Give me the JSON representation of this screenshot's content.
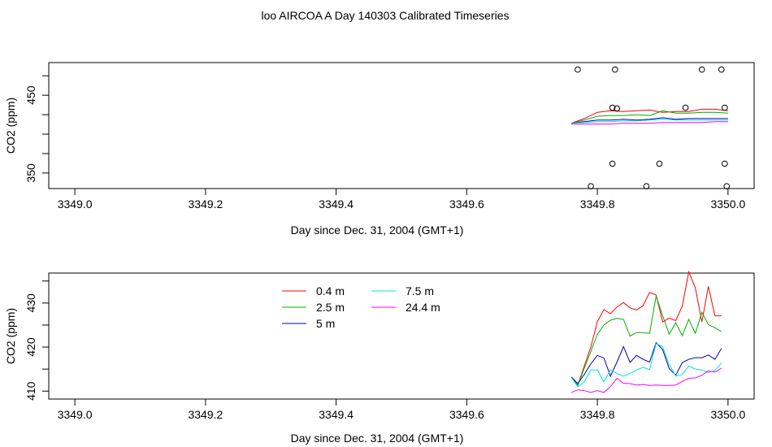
{
  "title": "loo AIRCOA A  Day 140303  Calibrated Timeseries",
  "chart_data": [
    {
      "type": "line",
      "xlabel": "Day since Dec. 31, 2004 (GMT+1)",
      "ylabel": "CO2 (ppm)",
      "xlim": [
        3348.96,
        3350.04
      ],
      "ylim": [
        330,
        492
      ],
      "x_ticks": [
        3349.0,
        3349.2,
        3349.4,
        3349.6,
        3349.8,
        3350.0
      ],
      "x_tick_labels": [
        "3349.0",
        "3349.2",
        "3349.4",
        "3349.6",
        "3349.8",
        "3350.0"
      ],
      "y_ticks": [
        350,
        400,
        450
      ],
      "y_tick_labels": [
        "350",
        "",
        "450"
      ],
      "y_minor_ticks": [
        375,
        425,
        475
      ],
      "series": [
        {
          "name": "0.4 m",
          "color": "#ff0000",
          "x": [
            3349.76,
            3349.78,
            3349.8,
            3349.82,
            3349.84,
            3349.86,
            3349.88,
            3349.9,
            3349.92,
            3349.94,
            3349.96,
            3349.98,
            3350.0
          ],
          "y": [
            414,
            420,
            428,
            430,
            429,
            430,
            431,
            428,
            429,
            429,
            432,
            432,
            430
          ]
        },
        {
          "name": "2.5 m",
          "color": "#00b000",
          "x": [
            3349.76,
            3349.78,
            3349.8,
            3349.82,
            3349.84,
            3349.86,
            3349.88,
            3349.9,
            3349.92,
            3349.94,
            3349.96,
            3349.98,
            3350.0
          ],
          "y": [
            414,
            418,
            423,
            424,
            424,
            425,
            424,
            430,
            427,
            427,
            428,
            428,
            427
          ]
        },
        {
          "name": "5 m",
          "color": "#0000b0",
          "x": [
            3349.76,
            3349.78,
            3349.8,
            3349.82,
            3349.84,
            3349.86,
            3349.88,
            3349.9,
            3349.92,
            3349.94,
            3349.96,
            3349.98,
            3350.0
          ],
          "y": [
            414,
            416,
            418,
            418,
            419,
            418,
            419,
            421,
            419,
            420,
            420,
            420,
            420
          ]
        },
        {
          "name": "7.5 m",
          "color": "#00e0e0",
          "x": [
            3349.76,
            3349.78,
            3349.8,
            3349.82,
            3349.84,
            3349.86,
            3349.88,
            3349.9,
            3349.92,
            3349.94,
            3349.96,
            3349.98,
            3350.0
          ],
          "y": [
            414,
            415,
            416,
            416,
            417,
            417,
            418,
            419,
            418,
            418,
            418,
            418,
            418
          ]
        },
        {
          "name": "24.4 m",
          "color": "#ff00ff",
          "x": [
            3349.76,
            3349.78,
            3349.8,
            3349.82,
            3349.84,
            3349.86,
            3349.88,
            3349.9,
            3349.92,
            3349.94,
            3349.96,
            3349.98,
            3350.0
          ],
          "y": [
            413,
            413,
            413,
            413,
            414,
            414,
            414,
            415,
            415,
            415,
            415,
            416,
            416
          ]
        }
      ],
      "points": {
        "x": [
          3349.77,
          3349.79,
          3349.823,
          3349.827,
          3349.83,
          3349.823,
          3349.875,
          3349.895,
          3349.935,
          3349.96,
          3349.99,
          3349.995,
          3349.995,
          3349.998
        ],
        "y": [
          483,
          333,
          434,
          483,
          433,
          362,
          333,
          362,
          434,
          483,
          483,
          362,
          434,
          333
        ]
      }
    },
    {
      "type": "line",
      "xlabel": "Day since Dec. 31, 2004 (GMT+1)",
      "ylabel": "CO2 (ppm)",
      "xlim": [
        3348.96,
        3350.04
      ],
      "ylim": [
        408.2,
        436.8
      ],
      "x_ticks": [
        3349.0,
        3349.2,
        3349.4,
        3349.6,
        3349.8,
        3350.0
      ],
      "x_tick_labels": [
        "3349.0",
        "3349.2",
        "3349.4",
        "3349.6",
        "3349.8",
        "3350.0"
      ],
      "y_ticks": [
        410,
        420,
        430
      ],
      "y_tick_labels": [
        "410",
        "420",
        "430"
      ],
      "y_minor_ticks": [
        415,
        425,
        435
      ],
      "legend": {
        "placement": "top-center",
        "columns": 2
      },
      "series": [
        {
          "name": "0.4 m",
          "color": "#ff0000",
          "x": [
            3349.76,
            3349.77,
            3349.78,
            3349.79,
            3349.8,
            3349.81,
            3349.82,
            3349.83,
            3349.84,
            3349.85,
            3349.86,
            3349.87,
            3349.88,
            3349.89,
            3349.9,
            3349.91,
            3349.92,
            3349.93,
            3349.94,
            3349.95,
            3349.96,
            3349.97,
            3349.98,
            3349.99
          ],
          "y": [
            413.2,
            411.3,
            415.7,
            420.0,
            425.8,
            428.5,
            427.6,
            429.1,
            430.1,
            428.9,
            428.4,
            429.4,
            432.4,
            431.8,
            425.7,
            426.6,
            426.0,
            429.3,
            437.1,
            433.4,
            425.7,
            433.8,
            427.1,
            427.1
          ]
        },
        {
          "name": "2.5 m",
          "color": "#00b000",
          "x": [
            3349.76,
            3349.77,
            3349.78,
            3349.79,
            3349.8,
            3349.81,
            3349.82,
            3349.83,
            3349.84,
            3349.85,
            3349.86,
            3349.87,
            3349.88,
            3349.89,
            3349.9,
            3349.91,
            3349.92,
            3349.93,
            3349.94,
            3349.95,
            3349.96,
            3349.97,
            3349.98,
            3349.99
          ],
          "y": [
            413.2,
            411.3,
            415.2,
            419.0,
            422.9,
            425.0,
            426.1,
            426.5,
            426.3,
            422.5,
            423.3,
            423.3,
            423.1,
            431.6,
            427.1,
            422.9,
            425.5,
            422.6,
            426.3,
            423.1,
            427.9,
            425.1,
            424.4,
            423.5
          ]
        },
        {
          "name": "5 m",
          "color": "#0000b0",
          "x": [
            3349.76,
            3349.77,
            3349.78,
            3349.79,
            3349.8,
            3349.81,
            3349.82,
            3349.83,
            3349.84,
            3349.85,
            3349.86,
            3349.87,
            3349.88,
            3349.89,
            3349.9,
            3349.91,
            3349.92,
            3349.93,
            3349.94,
            3349.95,
            3349.96,
            3349.97,
            3349.98,
            3349.99
          ],
          "y": [
            413.2,
            411.7,
            413.8,
            416.2,
            418.1,
            417.5,
            413.4,
            416.6,
            420.1,
            416.5,
            418.1,
            417.2,
            416.6,
            421.0,
            419.4,
            415.1,
            413.6,
            416.5,
            417.2,
            417.6,
            417.6,
            418.2,
            417.2,
            419.7
          ]
        },
        {
          "name": "7.5 m",
          "color": "#00e0e0",
          "x": [
            3349.76,
            3349.77,
            3349.78,
            3349.79,
            3349.8,
            3349.81,
            3349.82,
            3349.83,
            3349.84,
            3349.85,
            3349.86,
            3349.87,
            3349.88,
            3349.89,
            3349.9,
            3349.91,
            3349.92,
            3349.93,
            3349.94,
            3349.95,
            3349.96,
            3349.97,
            3349.98,
            3349.99
          ],
          "y": [
            413.1,
            411.0,
            412.1,
            414.8,
            414.8,
            412.1,
            414.8,
            414.0,
            413.4,
            414.0,
            414.8,
            415.4,
            414.9,
            420.8,
            420.1,
            416.0,
            413.4,
            413.8,
            415.7,
            415.0,
            414.8,
            414.2,
            414.7,
            416.4
          ]
        },
        {
          "name": "24.4 m",
          "color": "#ff00ff",
          "x": [
            3349.76,
            3349.77,
            3349.78,
            3349.79,
            3349.8,
            3349.81,
            3349.82,
            3349.83,
            3349.84,
            3349.85,
            3349.86,
            3349.87,
            3349.88,
            3349.89,
            3349.9,
            3349.91,
            3349.92,
            3349.93,
            3349.94,
            3349.95,
            3349.96,
            3349.97,
            3349.98,
            3349.99
          ],
          "y": [
            409.7,
            410.3,
            410.1,
            409.7,
            410.1,
            409.7,
            411.0,
            412.9,
            411.8,
            411.7,
            411.4,
            411.5,
            411.3,
            411.4,
            411.3,
            411.3,
            411.4,
            412.2,
            412.9,
            413.0,
            413.6,
            414.6,
            414.3,
            415.2
          ]
        }
      ]
    }
  ]
}
